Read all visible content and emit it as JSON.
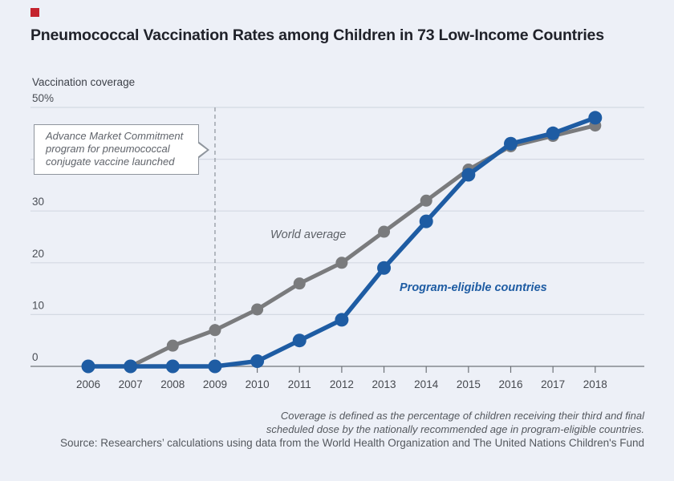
{
  "page": {
    "title": "Pneumococcal Vaccination Rates among Children in 73 Low-Income Countries",
    "background_color": "#edf0f7",
    "brand_square_color": "#c4232e"
  },
  "chart_data": {
    "type": "line",
    "title": "Pneumococcal Vaccination Rates among Children in 73 Low-Income Countries",
    "ylabel": "Vaccination coverage",
    "xlabel": "",
    "x": [
      2006,
      2007,
      2008,
      2009,
      2010,
      2011,
      2012,
      2013,
      2014,
      2015,
      2016,
      2017,
      2018
    ],
    "series": [
      {
        "name": "World average",
        "color": "#7a7b7d",
        "values": [
          0,
          0,
          4,
          7,
          11,
          16,
          20,
          26,
          32,
          38,
          42.5,
          44.5,
          46.5
        ]
      },
      {
        "name": "Program-eligible countries",
        "color": "#1e5ca3",
        "values": [
          0,
          0,
          0,
          0,
          1,
          5,
          9,
          19,
          28,
          37,
          43,
          45,
          48
        ]
      }
    ],
    "ylim": [
      0,
      50
    ],
    "yticks": [
      0,
      10,
      20,
      30,
      40,
      50
    ],
    "ytick_labels": [
      "0",
      "10",
      "20",
      "30",
      "",
      "50%"
    ],
    "grid": true,
    "legend_position": "inline-labels",
    "annotation": {
      "lines": [
        "Advance Market Commitment",
        "program for pneumococcal",
        "conjugate vaccine launched"
      ],
      "year": 2009,
      "line_style": "dashed"
    }
  },
  "footer": {
    "note_line1": "Coverage is defined as the percentage of children receiving their third and final",
    "note_line2": "scheduled dose by the nationally recommended age in program-eligible countries.",
    "source": "Source: Researchers’ calculations using data from the World Health Organization and The United Nations Children's Fund"
  }
}
